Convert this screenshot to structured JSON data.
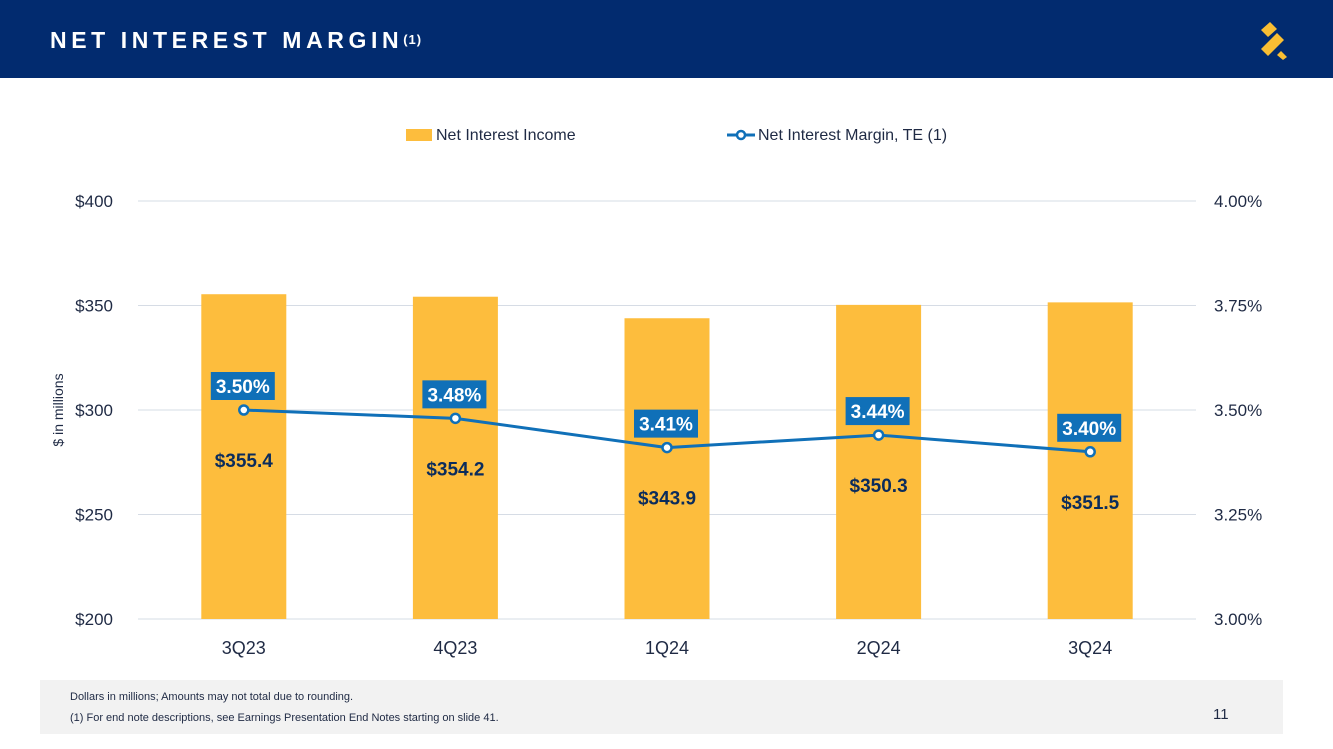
{
  "header": {
    "title": "NET INTEREST MARGIN",
    "title_note": "(1)",
    "background": "#022B6F",
    "logo_icon": "company-s-logo-icon",
    "logo_color": "#F9BE33"
  },
  "chart_data": {
    "type": "bar+line",
    "categories": [
      "3Q23",
      "4Q23",
      "1Q24",
      "2Q24",
      "3Q24"
    ],
    "series": [
      {
        "name": "Net Interest Income",
        "type": "bar",
        "axis": "left",
        "values": [
          355.4,
          354.2,
          343.9,
          350.3,
          351.5
        ],
        "labels": [
          "$355.4",
          "$354.2",
          "$343.9",
          "$350.3",
          "$351.5"
        ],
        "color": "#FDBD3D"
      },
      {
        "name": "Net Interest Margin, TE (1)",
        "type": "line",
        "axis": "right",
        "values": [
          3.5,
          3.48,
          3.41,
          3.44,
          3.4
        ],
        "labels": [
          "3.50%",
          "3.48%",
          "3.41%",
          "3.44%",
          "3.40%"
        ],
        "color": "#1070B8"
      }
    ],
    "y_left": {
      "label": "$ in millions",
      "min": 200,
      "max": 400,
      "ticks": [
        200,
        250,
        300,
        350,
        400
      ],
      "tick_labels": [
        "$200",
        "$250",
        "$300",
        "$350",
        "$400"
      ]
    },
    "y_right": {
      "min": 3.0,
      "max": 4.0,
      "ticks": [
        3.0,
        3.25,
        3.5,
        3.75,
        4.0
      ],
      "tick_labels": [
        "3.00%",
        "3.25%",
        "3.50%",
        "3.75%",
        "4.00%"
      ]
    },
    "grid": true,
    "legend_position": "top-center",
    "gridline_color": "#D6DCE5",
    "text_color": "#1F2A44",
    "value_label_color": "#0B2C5C"
  },
  "footnotes": {
    "line1": "Dollars in millions; Amounts may not total due to rounding.",
    "line2": "(1)  For end note descriptions, see Earnings Presentation End Notes starting on slide 41."
  },
  "page_number": "11"
}
